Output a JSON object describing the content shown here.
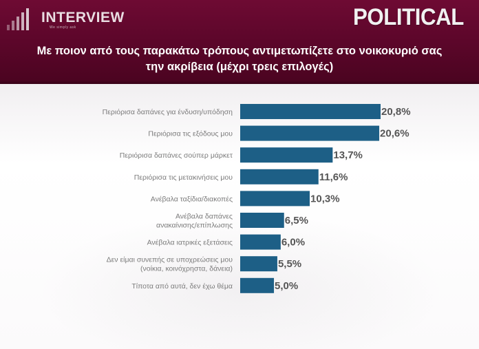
{
  "header": {
    "logo_name": "INTERVIEW",
    "logo_tagline": "We simply ask",
    "brand": "POLITICAL"
  },
  "chart_data": {
    "type": "bar",
    "orientation": "horizontal",
    "title": "Με ποιον από τους παρακάτω τρόπους αντιμετωπίζετε στο νοικοκυριό σας την ακρίβεια (μέχρι τρεις επιλογές)",
    "categories": [
      [
        "Περιόρισα δαπάνες για ένδυση/υπόδηση"
      ],
      [
        "Περιόρισα τις εξόδους μου"
      ],
      [
        "Περιόρισα δαπάνες σούπερ μάρκετ"
      ],
      [
        "Περιόρισα τις μετακινήσεις μου"
      ],
      [
        "Ανέβαλα ταξίδια/διακοπές"
      ],
      [
        "Ανέβαλα δαπάνες",
        "ανακαίνισης/επίπλωσης"
      ],
      [
        "Ανέβαλα ιατρικές εξετάσεις"
      ],
      [
        "Δεν είμαι συνεπής σε υποχρεώσεις μου",
        "(νοίκια, κοινόχρηστα, δάνεια)"
      ],
      [
        "Τίποτα από αυτά, δεν έχω θέμα"
      ]
    ],
    "values": [
      20.8,
      20.6,
      13.7,
      11.6,
      10.3,
      6.5,
      6.0,
      5.5,
      5.0
    ],
    "value_labels": [
      "20,8%",
      "20,6%",
      "13,7%",
      "11,6%",
      "10,3%",
      "6,5%",
      "6,0%",
      "5,5%",
      "5,0%"
    ],
    "bar_color": "#1d5f86",
    "xlim": [
      0,
      20.8
    ],
    "grid": false,
    "legend": "none"
  }
}
